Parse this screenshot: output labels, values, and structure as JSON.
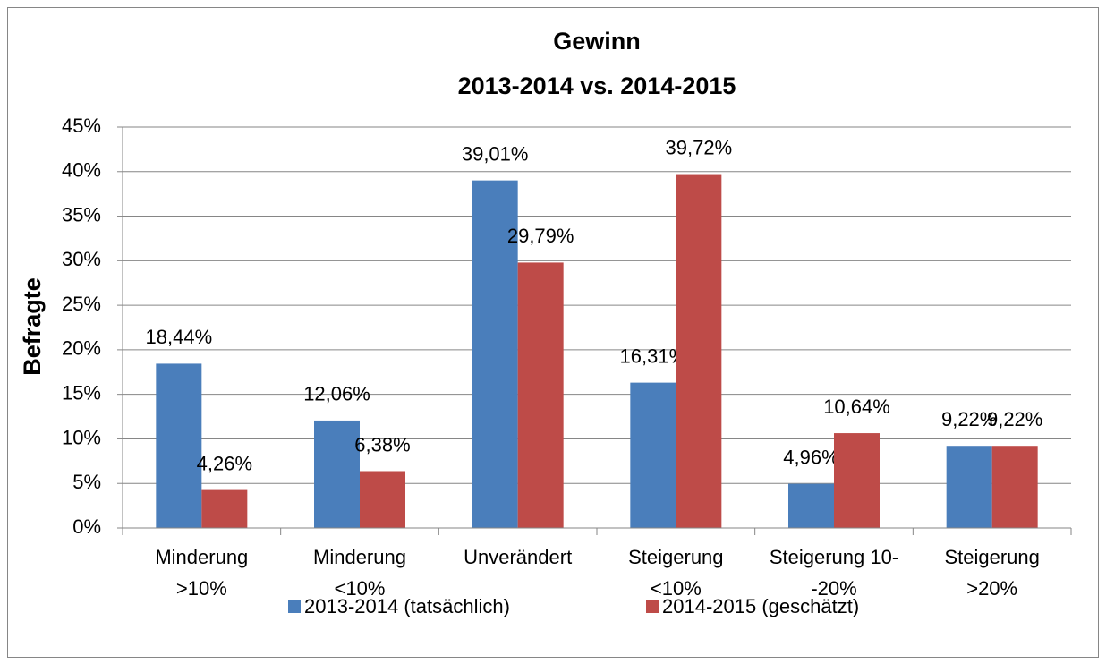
{
  "chart_data": {
    "type": "bar",
    "title": [
      "Gewinn",
      "2013-2014 vs. 2014-2015"
    ],
    "y_label": "Befragte",
    "categories": [
      [
        "Minderung",
        ">10%"
      ],
      [
        "Minderung",
        "<10%"
      ],
      [
        "Unverändert"
      ],
      [
        "Steigerung",
        "<10%"
      ],
      [
        "Steigerung 10-",
        "-20%"
      ],
      [
        "Steigerung",
        ">20%"
      ]
    ],
    "series": [
      {
        "name": "2013-2014 (tatsächlich)",
        "color": "#4a7ebb",
        "values": [
          18.44,
          12.06,
          39.01,
          16.31,
          4.96,
          9.22
        ],
        "value_labels": [
          "18,44%",
          "12,06%",
          "39,01%",
          "16,31%",
          "4,96%",
          "9,22%"
        ]
      },
      {
        "name": "2014-2015 (geschätzt)",
        "color": "#be4b48",
        "values": [
          4.26,
          6.38,
          29.79,
          39.72,
          10.64,
          9.22
        ],
        "value_labels": [
          "4,26%",
          "6,38%",
          "29,79%",
          "39,72%",
          "10,64%",
          "9,22%"
        ]
      }
    ],
    "ylim": [
      0,
      45
    ],
    "yticks": [
      {
        "value": 0,
        "label": "0%"
      },
      {
        "value": 5,
        "label": "5%"
      },
      {
        "value": 10,
        "label": "10%"
      },
      {
        "value": 15,
        "label": "15%"
      },
      {
        "value": 20,
        "label": "20%"
      },
      {
        "value": 25,
        "label": "25%"
      },
      {
        "value": 30,
        "label": "30%"
      },
      {
        "value": 35,
        "label": "35%"
      },
      {
        "value": 40,
        "label": "40%"
      },
      {
        "value": 45,
        "label": "45%"
      }
    ],
    "grid": true,
    "legend": "bottom"
  }
}
